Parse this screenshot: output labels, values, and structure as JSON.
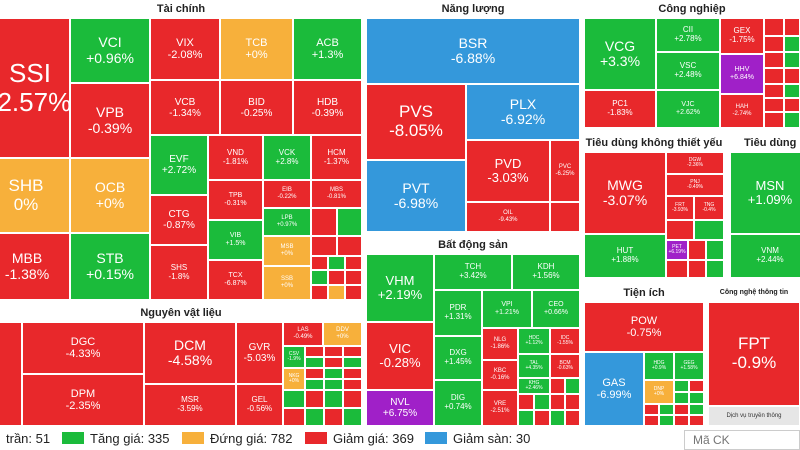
{
  "sections": {
    "tai_chinh": "Tài chính",
    "nang_luong": "Năng lượng",
    "cong_nghiep": "Công nghiệp",
    "tieu_dung": "Tiêu dùng không thiết yếu",
    "tieu_dung2": "Tiêu dùng",
    "bat_dong_san": "Bất động sản",
    "nguyen_vat_lieu": "Nguyên vật liệu",
    "tien_ich": "Tiện ích",
    "cong_nghe": "Công nghệ thông tin",
    "dich_vu": "Dịch vụ truyền thông"
  },
  "tiles": {
    "SSI": {
      "t": "SSI",
      "p": "-2.57%"
    },
    "SHB": {
      "t": "SHB",
      "p": "0%"
    },
    "MBB": {
      "t": "MBB",
      "p": "-1.38%"
    },
    "VCI": {
      "t": "VCI",
      "p": "+0.96%"
    },
    "VPB": {
      "t": "VPB",
      "p": "-0.39%"
    },
    "OCB": {
      "t": "OCB",
      "p": "+0%"
    },
    "STB": {
      "t": "STB",
      "p": "+0.15%"
    },
    "VIX": {
      "t": "VIX",
      "p": "-2.08%"
    },
    "TCB": {
      "t": "TCB",
      "p": "+0%"
    },
    "ACB": {
      "t": "ACB",
      "p": "+1.3%"
    },
    "VCB": {
      "t": "VCB",
      "p": "-1.34%"
    },
    "BID": {
      "t": "BID",
      "p": "-0.25%"
    },
    "HDB": {
      "t": "HDB",
      "p": "-0.39%"
    },
    "EVF": {
      "t": "EVF",
      "p": "+2.72%"
    },
    "VND": {
      "t": "VND",
      "p": "-1.81%"
    },
    "VCK": {
      "t": "VCK",
      "p": "+2.8%"
    },
    "HCM": {
      "t": "HCM",
      "p": "-1.37%"
    },
    "EIB": {
      "t": "EIB",
      "p": "-0.22%"
    },
    "MBS": {
      "t": "MBS",
      "p": "-0.81%"
    },
    "CTG": {
      "t": "CTG",
      "p": "-0.87%"
    },
    "TPB": {
      "t": "TPB",
      "p": "-0.31%"
    },
    "LPB": {
      "t": "LPB",
      "p": "+0.97%"
    },
    "VIB": {
      "t": "VIB",
      "p": "+1.5%"
    },
    "MSB": {
      "t": "MSB",
      "p": "+0%"
    },
    "SHS": {
      "t": "SHS",
      "p": "-1.8%"
    },
    "TCX": {
      "t": "TCX",
      "p": "-6.87%"
    },
    "SSB": {
      "t": "SSB",
      "p": "+0%"
    },
    "BSR": {
      "t": "BSR",
      "p": "-6.88%"
    },
    "PVS": {
      "t": "PVS",
      "p": "-8.05%"
    },
    "PLX": {
      "t": "PLX",
      "p": "-6.92%"
    },
    "PVD": {
      "t": "PVD",
      "p": "-3.03%"
    },
    "PVC": {
      "t": "PVC",
      "p": "-6.25%"
    },
    "PVT": {
      "t": "PVT",
      "p": "-6.98%"
    },
    "OIL": {
      "t": "OIL",
      "p": "-9.43%"
    },
    "VCG": {
      "t": "VCG",
      "p": "+3.3%"
    },
    "CII": {
      "t": "CII",
      "p": "+2.78%"
    },
    "GEX": {
      "t": "GEX",
      "p": "-1.75%"
    },
    "VSC": {
      "t": "VSC",
      "p": "+2.48%"
    },
    "HHV": {
      "t": "HHV",
      "p": "+6.84%"
    },
    "PC1": {
      "t": "PC1",
      "p": "-1.83%"
    },
    "VJC": {
      "t": "VJC",
      "p": "+2.62%"
    },
    "HAH": {
      "t": "HAH",
      "p": "-2.74%"
    },
    "MWG": {
      "t": "MWG",
      "p": "-3.07%"
    },
    "DGW": {
      "t": "DGW",
      "p": "-2.36%"
    },
    "PNJ": {
      "t": "PNJ",
      "p": "-0.49%"
    },
    "FRT": {
      "t": "FRT",
      "p": "-3.93%"
    },
    "TNG": {
      "t": "TNG",
      "p": "-0.4%"
    },
    "HUT": {
      "t": "HUT",
      "p": "+1.88%"
    },
    "PET": {
      "t": "PET",
      "p": "+6.19%"
    },
    "MSN": {
      "t": "MSN",
      "p": "+1.09%"
    },
    "VNM": {
      "t": "VNM",
      "p": "+2.44%"
    },
    "VHM": {
      "t": "VHM",
      "p": "+2.19%"
    },
    "TCH": {
      "t": "TCH",
      "p": "+3.42%"
    },
    "KDH": {
      "t": "KDH",
      "p": "+1.56%"
    },
    "PDR": {
      "t": "PDR",
      "p": "+1.31%"
    },
    "VPI": {
      "t": "VPI",
      "p": "+1.21%"
    },
    "CEO": {
      "t": "CEO",
      "p": "+0.66%"
    },
    "VIC": {
      "t": "VIC",
      "p": "-0.28%"
    },
    "DXG": {
      "t": "DXG",
      "p": "+1.45%"
    },
    "NLG": {
      "t": "NLG",
      "p": "-1.86%"
    },
    "HDC": {
      "t": "HDC",
      "p": "+1.12%"
    },
    "IDC": {
      "t": "IDC",
      "p": "-1.55%"
    },
    "NVL": {
      "t": "NVL",
      "p": "+6.75%"
    },
    "DIG": {
      "t": "DIG",
      "p": "+0.74%"
    },
    "KBC": {
      "t": "KBC",
      "p": "-0.16%"
    },
    "TAL": {
      "t": "TAL",
      "p": "+4.35%"
    },
    "KHG": {
      "t": "KHG",
      "p": "+2.46%"
    },
    "VRE": {
      "t": "VRE",
      "p": "-2.51%"
    },
    "BCM": {
      "t": "BCM",
      "p": "-0.63%"
    },
    "DGC": {
      "t": "DGC",
      "p": "-4.33%"
    },
    "DCM": {
      "t": "DCM",
      "p": "-4.58%"
    },
    "GVR": {
      "t": "GVR",
      "p": "-5.03%"
    },
    "LAS": {
      "t": "LAS",
      "p": "-0.49%"
    },
    "DDV": {
      "t": "DDV",
      "p": "+0%"
    },
    "CSV": {
      "t": "CSV",
      "p": "-1.9%"
    },
    "NKG": {
      "t": "NKG",
      "p": "+0%"
    },
    "DPM": {
      "t": "DPM",
      "p": "-2.35%"
    },
    "MSR": {
      "t": "MSR",
      "p": "-3.59%"
    },
    "GEL": {
      "t": "GEL",
      "p": "-0.56%"
    },
    "POW": {
      "t": "POW",
      "p": "-0.75%"
    },
    "GAS": {
      "t": "GAS",
      "p": "-6.99%"
    },
    "HDG": {
      "t": "HDG",
      "p": "+0.9%"
    },
    "GEG": {
      "t": "GEG",
      "p": "+1.58%"
    },
    "DNP": {
      "t": "DNP",
      "p": "+0%"
    },
    "FPT": {
      "t": "FPT",
      "p": "-0.9%"
    }
  },
  "legend": [
    {
      "label": "trần: 51",
      "color": "#a020c8"
    },
    {
      "label": "Tăng giá: 335",
      "color": "#1bbb3b"
    },
    {
      "label": "Đứng giá: 782",
      "color": "#f7b03b"
    },
    {
      "label": "Giảm giá: 369",
      "color": "#e8282b"
    },
    {
      "label": "Giảm sàn: 30",
      "color": "#3498db"
    }
  ],
  "search": {
    "placeholder": "Mã CK"
  }
}
